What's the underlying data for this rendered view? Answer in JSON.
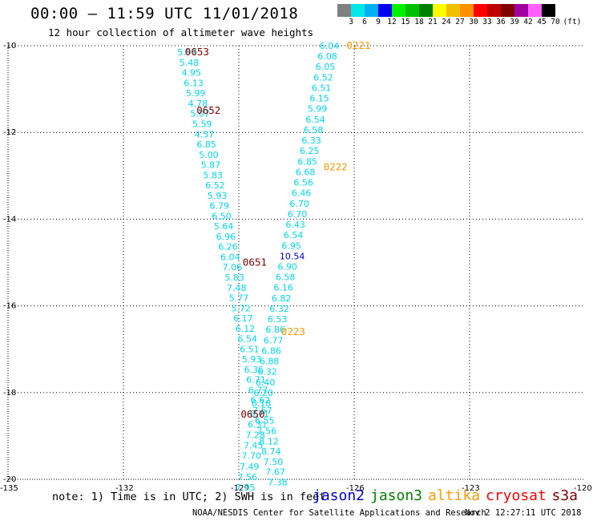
{
  "title": "00:00 – 11:59 UTC 11/01/2018",
  "subtitle": "12 hour collection of altimeter wave heights",
  "scale": {
    "labels": [
      "3",
      "6",
      "9",
      "12",
      "15",
      "18",
      "21",
      "24",
      "27",
      "30",
      "33",
      "36",
      "39",
      "42",
      "45",
      "70",
      "(ft)"
    ],
    "colors": [
      "#808080",
      "#00e8e8",
      "#00b0f0",
      "#0000f0",
      "#00f000",
      "#00c000",
      "#008000",
      "#ffff00",
      "#f0c000",
      "#ff9000",
      "#ff0000",
      "#c00000",
      "#800000",
      "#a000a0",
      "#ff60ff",
      "#000000"
    ]
  },
  "axes": {
    "lon_ticks": [
      "-135",
      "-132",
      "-129",
      "-126",
      "-123",
      "-120"
    ],
    "lat_ticks": [
      "-10",
      "-12",
      "-14",
      "-16",
      "-18",
      "-20"
    ],
    "lon_range": [
      -135,
      -120
    ],
    "lat_range": [
      -20,
      -10
    ],
    "grid": "dotted"
  },
  "colors": {
    "cyan": "#00d8e8",
    "blue": "#0000cc",
    "orange": "#ff9900",
    "maroon": "#800000",
    "green": "#008000",
    "red": "#ff0000"
  },
  "tracks": [
    {
      "name": "west-track",
      "lat_start": -10.15,
      "lon_start": -130.6,
      "lat_step": 0.236,
      "lon_step": 0.056,
      "values": [
        "5.97",
        "5.48",
        "4.95",
        "6.13",
        "5.99",
        "4.78",
        "5.07",
        "5.59",
        "4.57",
        "6.85",
        "5.00",
        "5.87",
        "5.83",
        "6.52",
        "5.93",
        "6.79",
        "6.50",
        "5.64",
        "6.96",
        "6.26",
        "6.04",
        "7.06",
        "5.83",
        "7.48",
        "5.77",
        "5.72",
        "6.17",
        "6.12",
        "6.54",
        "6.51",
        "5.93",
        "6.36",
        "6.71",
        "6.77",
        "6.62",
        "7.57",
        "6.55",
        "7.56",
        "8.12",
        "8.74",
        "7.50",
        "7.67",
        "7.38"
      ],
      "color_keys": [
        "cyan",
        "cyan",
        "cyan",
        "cyan",
        "cyan",
        "cyan",
        "cyan",
        "cyan",
        "cyan",
        "cyan",
        "cyan",
        "cyan",
        "cyan",
        "cyan",
        "cyan",
        "cyan",
        "cyan",
        "cyan",
        "cyan",
        "cyan",
        "cyan",
        "cyan",
        "cyan",
        "cyan",
        "cyan",
        "cyan",
        "cyan",
        "cyan",
        "cyan",
        "cyan",
        "cyan",
        "cyan",
        "cyan",
        "cyan",
        "cyan",
        "cyan",
        "cyan",
        "cyan",
        "cyan",
        "cyan",
        "cyan",
        "cyan",
        "cyan"
      ]
    },
    {
      "name": "east-track",
      "lat_start": -10.0,
      "lon_start": -126.9,
      "lat_step": 0.2425,
      "lon_step": -0.052,
      "values": [
        "6.04",
        "6.08",
        "6.05",
        "6.52",
        "6.51",
        "6.15",
        "5.99",
        "6.54",
        "6.58",
        "6.33",
        "6.25",
        "6.85",
        "6.68",
        "6.56",
        "6.46",
        "6.70",
        "6.70",
        "6.43",
        "6.54",
        "6.95",
        "10.54",
        "6.90",
        "6.58",
        "6.16",
        "6.82",
        "6.32",
        "6.53",
        "6.86",
        "6.77",
        "6.86",
        "6.88",
        "6.32",
        "6.40",
        "6.20",
        "6.18",
        "6.71",
        "6.31",
        "7.28",
        "7.45",
        "7.70",
        "7.49",
        "7.56",
        "7.95"
      ],
      "color_keys": [
        "cyan",
        "cyan",
        "cyan",
        "cyan",
        "cyan",
        "cyan",
        "cyan",
        "cyan",
        "cyan",
        "cyan",
        "cyan",
        "cyan",
        "cyan",
        "cyan",
        "cyan",
        "cyan",
        "cyan",
        "cyan",
        "cyan",
        "cyan",
        "blue",
        "cyan",
        "cyan",
        "cyan",
        "cyan",
        "cyan",
        "cyan",
        "cyan",
        "cyan",
        "cyan",
        "cyan",
        "cyan",
        "cyan",
        "cyan",
        "cyan",
        "cyan",
        "cyan",
        "cyan",
        "cyan",
        "cyan",
        "cyan",
        "cyan",
        "cyan"
      ]
    }
  ],
  "time_tags": [
    {
      "label": "0653",
      "lat": -10.15,
      "lon": -130.4,
      "color_key": "maroon"
    },
    {
      "label": "0652",
      "lat": -11.5,
      "lon": -130.1,
      "color_key": "maroon"
    },
    {
      "label": "0651",
      "lat": -15.0,
      "lon": -128.9,
      "color_key": "maroon"
    },
    {
      "label": "0650",
      "lat": -18.5,
      "lon": -128.95,
      "color_key": "maroon"
    },
    {
      "label": "0221",
      "lat": -10.0,
      "lon": -126.2,
      "color_key": "orange"
    },
    {
      "label": "0222",
      "lat": -12.8,
      "lon": -126.8,
      "color_key": "orange"
    },
    {
      "label": "0223",
      "lat": -16.6,
      "lon": -127.9,
      "color_key": "orange"
    }
  ],
  "note": "note: 1) Time is in UTC; 2) SWH is in feet",
  "satellites": [
    {
      "name": "jason2",
      "color": "#0000cc"
    },
    {
      "name": "jason3",
      "color": "#008000"
    },
    {
      "name": "altika",
      "color": "#ff9900"
    },
    {
      "name": "cryosat",
      "color": "#ff0000"
    },
    {
      "name": "s3a",
      "color": "#800000"
    }
  ],
  "credit": "NOAA/NESDIS Center for Satellite Applications and Research",
  "timestamp": "Nov  2 12:27:11 UTC 2018"
}
